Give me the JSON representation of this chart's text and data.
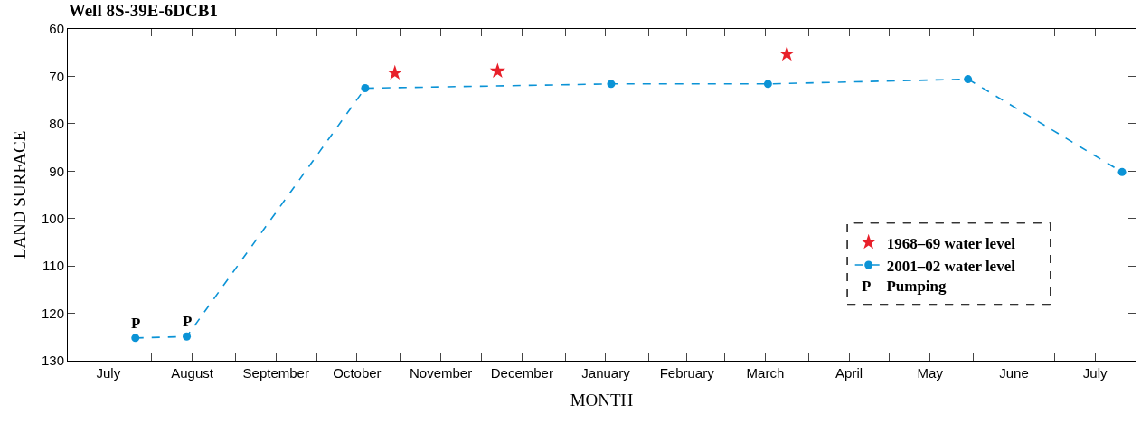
{
  "chart_data": {
    "type": "scatter",
    "title": "Well 8S-39E-6DCB1",
    "xlabel": "MONTH",
    "ylabel": "LAND SURFACE",
    "xlim": [
      "2001-07-01",
      "2002-07-31"
    ],
    "xticks": [
      {
        "value": "2001-07-16",
        "label": "July"
      },
      {
        "value": "2001-08-01",
        "label": null
      },
      {
        "value": "2001-08-16",
        "label": "August"
      },
      {
        "value": "2001-09-01",
        "label": null
      },
      {
        "value": "2001-09-16",
        "label": "September"
      },
      {
        "value": "2001-10-01",
        "label": null
      },
      {
        "value": "2001-10-16",
        "label": "October"
      },
      {
        "value": "2001-11-01",
        "label": null
      },
      {
        "value": "2001-11-16",
        "label": "November"
      },
      {
        "value": "2001-12-01",
        "label": null
      },
      {
        "value": "2001-12-16",
        "label": "December"
      },
      {
        "value": "2002-01-01",
        "label": null
      },
      {
        "value": "2002-01-16",
        "label": "January"
      },
      {
        "value": "2002-02-01",
        "label": null
      },
      {
        "value": "2002-02-15",
        "label": "February"
      },
      {
        "value": "2002-03-01",
        "label": null
      },
      {
        "value": "2002-03-16",
        "label": "March"
      },
      {
        "value": "2002-04-01",
        "label": null
      },
      {
        "value": "2002-04-16",
        "label": "April"
      },
      {
        "value": "2002-05-01",
        "label": null
      },
      {
        "value": "2002-05-16",
        "label": "May"
      },
      {
        "value": "2002-06-01",
        "label": null
      },
      {
        "value": "2002-06-16",
        "label": "June"
      },
      {
        "value": "2002-07-01",
        "label": null
      },
      {
        "value": "2002-07-16",
        "label": "July"
      }
    ],
    "ylim": [
      130,
      60
    ],
    "yticks": [
      60,
      70,
      80,
      90,
      100,
      110,
      120,
      130
    ],
    "legend": "bottom right",
    "annotations": [
      {
        "text": "P",
        "x": "2001-07-26",
        "y": 125.2
      },
      {
        "text": "P",
        "x": "2001-08-14",
        "y": 124.9
      },
      "P  Pumping"
    ],
    "series": [
      {
        "name": "1968–69 water level",
        "marker": "star",
        "color": "#e8202a",
        "x": [
          "2001-10-30",
          "2001-12-07",
          "2002-03-24"
        ],
        "values": [
          69.3,
          68.9,
          65.3
        ]
      },
      {
        "name": "2001–02 water level",
        "type": "line",
        "marker": "circle",
        "line_style": "dashed",
        "color": "#0b93d6",
        "x": [
          "2001-07-26",
          "2001-08-14",
          "2001-10-19",
          "2002-01-18",
          "2002-03-17",
          "2002-05-30",
          "2002-07-26"
        ],
        "values": [
          125.2,
          124.9,
          72.5,
          71.6,
          71.6,
          70.6,
          90.2
        ]
      }
    ]
  }
}
